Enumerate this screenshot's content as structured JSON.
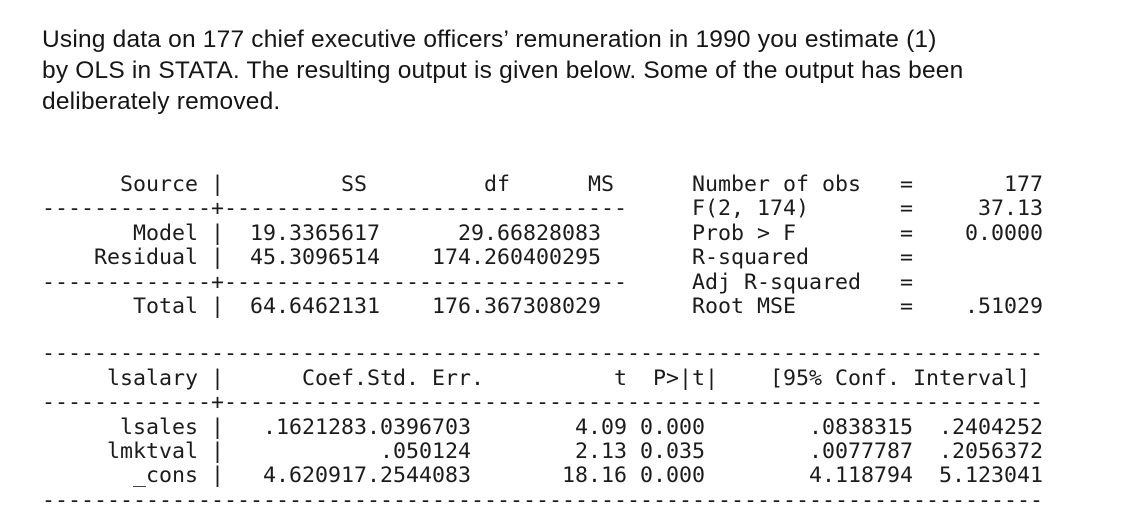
{
  "intro": {
    "lines": [
      "Using data on 177 chief executive officers’ remuneration in 1990 you estimate (1)",
      "by OLS in STATA. The resulting output is given below. Some of the output has been",
      "deliberately removed."
    ]
  },
  "glyphs": {
    "bar": "|",
    "eq": "="
  },
  "anova": {
    "headers": {
      "source": "Source",
      "ss": "SS",
      "df": "df",
      "ms": "MS"
    },
    "separator": "-------------+-------------------------------",
    "rows": [
      {
        "source": "Model",
        "ss": "19.3365617",
        "df": "2",
        "ms": "9.66828083"
      },
      {
        "source": "Residual",
        "ss": "45.3096514",
        "df": "174",
        "ms": ".260400295"
      }
    ],
    "total_row": {
      "source": "Total",
      "ss": "64.6462131",
      "df": "176",
      "ms": ".367308029"
    }
  },
  "fit_stats": {
    "items": [
      {
        "label": "Number of obs",
        "value": "177"
      },
      {
        "label": "F(2, 174)",
        "value": "37.13"
      },
      {
        "label": "Prob > F",
        "value": "0.0000"
      },
      {
        "label": "R-squared",
        "value": ""
      },
      {
        "label": "Adj R-squared",
        "value": ""
      },
      {
        "label": "Root MSE",
        "value": ".51029"
      }
    ]
  },
  "coef_table": {
    "depvar": "lsalary",
    "headers": {
      "coef": "Coef.",
      "se": "Std. Err.",
      "t": "t",
      "p": "P>|t|",
      "ci": "[95% Conf. Interval]"
    },
    "hline": "-----------------------------------------------------------------------------",
    "separator": "-------------+---------------------------------------------------------------",
    "rows": [
      {
        "var": "lsales",
        "coef": ".1621283",
        "se": ".0396703",
        "t": "4.09",
        "p": "0.000",
        "ci_low": ".0838315",
        "ci_high": ".2404252"
      },
      {
        "var": "lmktval",
        "coef": "",
        "se": ".050124",
        "t": "2.13",
        "p": "0.035",
        "ci_low": ".0077787",
        "ci_high": ".2056372"
      },
      {
        "var": "_cons",
        "coef": "4.620917",
        "se": ".2544083",
        "t": "18.16",
        "p": "0.000",
        "ci_low": "4.118794",
        "ci_high": "5.123041"
      }
    ]
  }
}
